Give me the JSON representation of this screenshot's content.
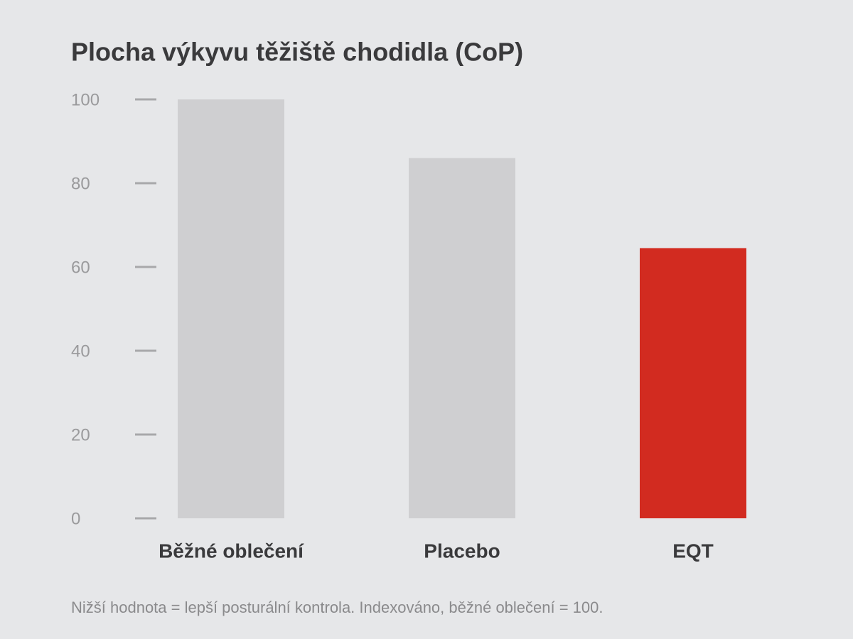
{
  "chart_data": {
    "type": "bar",
    "title": "Plocha výkyvu těžiště chodidla (CoP)",
    "categories": [
      "Běžné oblečení",
      "Placebo",
      "EQT"
    ],
    "values": [
      100,
      86,
      64.5
    ],
    "colors": [
      "#cfcfd1",
      "#cfcfd1",
      "#d22b20"
    ],
    "ylim": [
      0,
      100
    ],
    "yticks": [
      0,
      20,
      40,
      60,
      80,
      100
    ],
    "grid": false,
    "note": "Nižší hodnota = lepší posturální kontrola. Indexováno, běžné oblečení = 100."
  }
}
